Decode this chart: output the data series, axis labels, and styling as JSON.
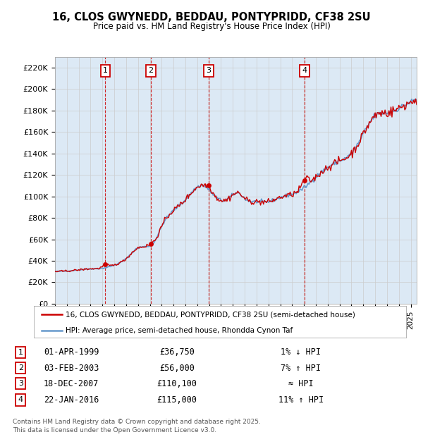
{
  "title": "16, CLOS GWYNEDD, BEDDAU, PONTYPRIDD, CF38 2SU",
  "subtitle": "Price paid vs. HM Land Registry's House Price Index (HPI)",
  "ylabel_ticks": [
    "£0",
    "£20K",
    "£40K",
    "£60K",
    "£80K",
    "£100K",
    "£120K",
    "£140K",
    "£160K",
    "£180K",
    "£200K",
    "£220K"
  ],
  "ytick_values": [
    0,
    20000,
    40000,
    60000,
    80000,
    100000,
    120000,
    140000,
    160000,
    180000,
    200000,
    220000
  ],
  "ylim": [
    0,
    230000
  ],
  "xlim_start": 1995.0,
  "xlim_end": 2025.5,
  "price_color": "#cc0000",
  "hpi_color": "#6699cc",
  "background_color": "#dce9f5",
  "plot_bg_color": "#ffffff",
  "grid_color": "#cccccc",
  "transactions": [
    {
      "num": 1,
      "date": "01-APR-1999",
      "price": 36750,
      "pct": "1%",
      "dir": "↓",
      "year": 1999.25
    },
    {
      "num": 2,
      "date": "03-FEB-2003",
      "price": 56000,
      "pct": "7%",
      "dir": "↑",
      "year": 2003.08
    },
    {
      "num": 3,
      "date": "18-DEC-2007",
      "price": 110100,
      "pct": "≈",
      "dir": "",
      "year": 2007.96
    },
    {
      "num": 4,
      "date": "22-JAN-2016",
      "price": 115000,
      "pct": "11%",
      "dir": "↑",
      "year": 2016.05
    }
  ],
  "legend_price_label": "16, CLOS GWYNEDD, BEDDAU, PONTYPRIDD, CF38 2SU (semi-detached house)",
  "legend_hpi_label": "HPI: Average price, semi-detached house, Rhondda Cynon Taf",
  "footer1": "Contains HM Land Registry data © Crown copyright and database right 2025.",
  "footer2": "This data is licensed under the Open Government Licence v3.0.",
  "hpi_key": [
    [
      1995.0,
      30000
    ],
    [
      1996.0,
      30500
    ],
    [
      1997.0,
      31500
    ],
    [
      1998.0,
      32500
    ],
    [
      1999.0,
      33000
    ],
    [
      2000.0,
      36000
    ],
    [
      2001.0,
      42000
    ],
    [
      2002.0,
      52000
    ],
    [
      2003.5,
      60000
    ],
    [
      2004.0,
      72000
    ],
    [
      2005.0,
      87000
    ],
    [
      2006.0,
      97000
    ],
    [
      2007.5,
      110000
    ],
    [
      2008.5,
      100000
    ],
    [
      2009.5,
      97000
    ],
    [
      2010.5,
      103000
    ],
    [
      2011.0,
      98000
    ],
    [
      2012.0,
      95000
    ],
    [
      2013.0,
      95000
    ],
    [
      2014.0,
      99000
    ],
    [
      2015.0,
      102000
    ],
    [
      2016.0,
      108000
    ],
    [
      2017.0,
      118000
    ],
    [
      2018.0,
      127000
    ],
    [
      2019.0,
      133000
    ],
    [
      2020.0,
      140000
    ],
    [
      2021.0,
      158000
    ],
    [
      2022.0,
      175000
    ],
    [
      2023.0,
      178000
    ],
    [
      2024.0,
      182000
    ],
    [
      2025.5,
      190000
    ]
  ]
}
